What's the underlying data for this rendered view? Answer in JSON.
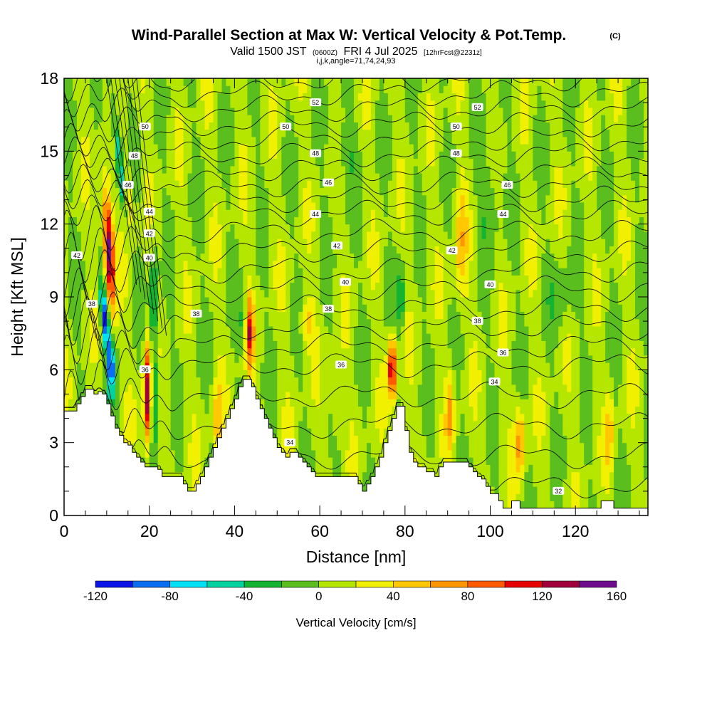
{
  "chart_data": {
    "type": "heatmap",
    "title": "Wind-Parallel Section at Max W: Vertical Velocity & Pot.Temp.",
    "title_mark": "(C)",
    "subtitle": {
      "valid": "Valid 1500 JST",
      "utc": "(0600Z)",
      "date": "FRI 4 Jul 2025",
      "fcst": "[12hrFcst@2231z]"
    },
    "index_line": "i,j,k,angle=71,74,24,93",
    "xlabel": "Distance [nm]",
    "ylabel": "Height [Kft MSL]",
    "xlim": [
      0,
      137
    ],
    "ylim": [
      0,
      18
    ],
    "x_ticks": [
      0,
      20,
      40,
      60,
      80,
      100,
      120
    ],
    "y_ticks": [
      0,
      3,
      6,
      9,
      12,
      15,
      18
    ],
    "colorbar": {
      "label": "Vertical Velocity [cm/s]",
      "ticks": [
        -120,
        -80,
        -40,
        0,
        40,
        80,
        120,
        160
      ],
      "levels": [
        -120,
        -100,
        -80,
        -60,
        -40,
        -20,
        0,
        20,
        40,
        60,
        80,
        100,
        120,
        140,
        160
      ],
      "colors": [
        "#0a14e6",
        "#0a6ef0",
        "#00e1f5",
        "#00d2a0",
        "#14b432",
        "#5abe1e",
        "#b4e600",
        "#f0f000",
        "#ffc800",
        "#ff9600",
        "#ff5a00",
        "#e60000",
        "#a0003c",
        "#6e0a8c"
      ]
    },
    "isentropes": {
      "variable": "Potential Temperature",
      "labeled_levels": [
        32,
        34,
        36,
        38,
        40,
        42,
        44,
        46,
        48,
        50,
        52
      ],
      "labels": [
        {
          "text": "52",
          "x": 59,
          "y": 17.0
        },
        {
          "text": "52",
          "x": 97,
          "y": 16.8
        },
        {
          "text": "50",
          "x": 52,
          "y": 16.0
        },
        {
          "text": "50",
          "x": 92,
          "y": 16.0
        },
        {
          "text": "50",
          "x": 19,
          "y": 16.0
        },
        {
          "text": "48",
          "x": 16.5,
          "y": 14.8
        },
        {
          "text": "48",
          "x": 59,
          "y": 14.9
        },
        {
          "text": "48",
          "x": 92,
          "y": 14.9
        },
        {
          "text": "46",
          "x": 15,
          "y": 13.6
        },
        {
          "text": "46",
          "x": 62,
          "y": 13.7
        },
        {
          "text": "46",
          "x": 104,
          "y": 13.6
        },
        {
          "text": "44",
          "x": 20,
          "y": 12.5
        },
        {
          "text": "44",
          "x": 59,
          "y": 12.4
        },
        {
          "text": "44",
          "x": 103,
          "y": 12.4
        },
        {
          "text": "42",
          "x": 3,
          "y": 10.7
        },
        {
          "text": "42",
          "x": 20,
          "y": 11.6
        },
        {
          "text": "42",
          "x": 64,
          "y": 11.1
        },
        {
          "text": "42",
          "x": 91,
          "y": 10.9
        },
        {
          "text": "40",
          "x": 20,
          "y": 10.6
        },
        {
          "text": "40",
          "x": 66,
          "y": 9.6
        },
        {
          "text": "40",
          "x": 100,
          "y": 9.5
        },
        {
          "text": "38",
          "x": 6.5,
          "y": 8.7
        },
        {
          "text": "38",
          "x": 31,
          "y": 8.3
        },
        {
          "text": "38",
          "x": 62,
          "y": 8.5
        },
        {
          "text": "38",
          "x": 97,
          "y": 8.0
        },
        {
          "text": "36",
          "x": 65,
          "y": 6.2
        },
        {
          "text": "36",
          "x": 103,
          "y": 6.7
        },
        {
          "text": "36",
          "x": 19,
          "y": 6.0
        },
        {
          "text": "34",
          "x": 101,
          "y": 5.5
        },
        {
          "text": "34",
          "x": 53,
          "y": 3.0
        },
        {
          "text": "32",
          "x": 116,
          "y": 1.0
        }
      ]
    }
  }
}
